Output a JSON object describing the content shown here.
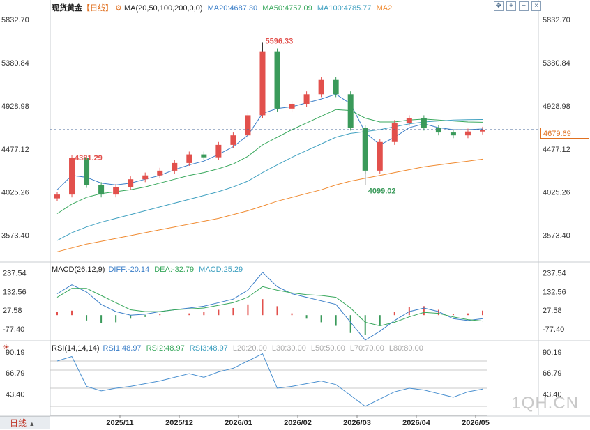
{
  "main_panel": {
    "instrument": "现货黄金",
    "period_tag": "【日线】",
    "ma_label": "MA(20,50,100,200,0,0)",
    "ma20": "MA20:4687.30",
    "ma50": "MA50:4757.09",
    "ma100": "MA100:4785.77",
    "ma2": "MA2",
    "yticks": [
      "5832.70",
      "5380.84",
      "4928.98",
      "4477.12",
      "4025.26",
      "3573.40"
    ],
    "last_price": "4679.69",
    "high_label": "5596.33",
    "low_label": "4099.02",
    "early_high_label": "4381.29"
  },
  "macd_panel": {
    "label": "MACD(26,12,9)",
    "diff": "DIFF:-20.14",
    "dea": "DEA:-32.79",
    "macd": "MACD:25.29",
    "yticks": [
      "237.54",
      "132.56",
      "27.58",
      "-77.40"
    ]
  },
  "rsi_panel": {
    "label": "RSI(14,14,14)",
    "rsi1": "RSI1:48.97",
    "rsi2": "RSI2:48.97",
    "rsi3": "RSI3:48.97",
    "l20": "L20:20.00",
    "l30": "L30:30.00",
    "l50": "L50:50.00",
    "l70": "L70:70.00",
    "l80": "L80:80.00",
    "yticks": [
      "90.19",
      "66.79",
      "43.40"
    ]
  },
  "xaxis": {
    "labels": [
      "2025/11",
      "2025/12",
      "2026/01",
      "2026/02",
      "2026/03",
      "2026/04",
      "2026/05"
    ]
  },
  "period_button": "日线",
  "watermark": "1QH.CN",
  "colors": {
    "up": "#e2504c",
    "down": "#3a9a5a",
    "ma20": "#3a7ec8",
    "ma50": "#38a85c",
    "ma100": "#3fa0c0",
    "ma200": "#f08a30",
    "rsi": "#4a90d0",
    "last_price": "#e07020"
  },
  "chart_data": [
    {
      "type": "candlestick",
      "title": "现货黄金【日线】",
      "ylim": [
        3300,
        5950
      ],
      "x": [
        "2025/10/22",
        "2025/10/29",
        "2025/11/05",
        "2025/11/12",
        "2025/11/19",
        "2025/11/26",
        "2025/12/03",
        "2025/12/10",
        "2025/12/17",
        "2025/12/24",
        "2025/12/31",
        "2026/01/07",
        "2026/01/14",
        "2026/01/21",
        "2026/01/28",
        "2026/02/04",
        "2026/02/11",
        "2026/02/18",
        "2026/02/25",
        "2026/03/04",
        "2026/03/11",
        "2026/03/18",
        "2026/03/25",
        "2026/04/01",
        "2026/04/08",
        "2026/04/15",
        "2026/04/22",
        "2026/04/29",
        "2026/05/06",
        "2026/05/13"
      ],
      "close": [
        4000,
        4381,
        4100,
        4000,
        4080,
        4160,
        4200,
        4250,
        4330,
        4420,
        4390,
        4520,
        4620,
        4830,
        5500,
        4900,
        4950,
        5050,
        5200,
        5050,
        4700,
        4250,
        4550,
        4750,
        4800,
        4700,
        4650,
        4620,
        4660,
        4680
      ],
      "high_label": 5596.33,
      "low_label": 4099.02,
      "last_price": 4679.69,
      "series": [
        {
          "name": "MA20",
          "values": [
            4050,
            4200,
            4180,
            4120,
            4100,
            4120,
            4160,
            4200,
            4260,
            4310,
            4350,
            4420,
            4500,
            4620,
            4850,
            4900,
            4920,
            4960,
            5000,
            5050,
            4950,
            4650,
            4520,
            4600,
            4700,
            4740,
            4700,
            4680,
            4680,
            4687.3
          ]
        },
        {
          "name": "MA50",
          "values": [
            3800,
            3900,
            3970,
            4010,
            4030,
            4050,
            4080,
            4120,
            4160,
            4200,
            4230,
            4270,
            4320,
            4400,
            4520,
            4600,
            4680,
            4750,
            4820,
            4890,
            4880,
            4800,
            4760,
            4760,
            4780,
            4790,
            4780,
            4770,
            4760,
            4757.09
          ]
        },
        {
          "name": "MA100",
          "values": [
            3520,
            3600,
            3660,
            3710,
            3750,
            3790,
            3830,
            3870,
            3910,
            3950,
            3990,
            4030,
            4080,
            4140,
            4230,
            4310,
            4390,
            4460,
            4530,
            4600,
            4640,
            4660,
            4680,
            4710,
            4740,
            4760,
            4770,
            4780,
            4784,
            4785.77
          ]
        },
        {
          "name": "MA2",
          "values": [
            3400,
            3440,
            3480,
            3510,
            3540,
            3570,
            3600,
            3630,
            3660,
            3690,
            3720,
            3750,
            3790,
            3830,
            3880,
            3930,
            3970,
            4010,
            4050,
            4100,
            4140,
            4170,
            4200,
            4230,
            4260,
            4290,
            4310,
            4330,
            4350,
            4370
          ]
        }
      ]
    },
    {
      "type": "bar",
      "title": "MACD(26,12,9)",
      "ylim": [
        -140,
        290
      ],
      "x": [
        "2025/10/22",
        "2025/10/29",
        "2025/11/05",
        "2025/11/12",
        "2025/11/19",
        "2025/11/26",
        "2025/12/03",
        "2025/12/10",
        "2025/12/17",
        "2025/12/24",
        "2025/12/31",
        "2026/01/07",
        "2026/01/14",
        "2026/01/21",
        "2026/01/28",
        "2026/02/04",
        "2026/02/11",
        "2026/02/18",
        "2026/02/25",
        "2026/03/04",
        "2026/03/11",
        "2026/03/18",
        "2026/03/25",
        "2026/04/01",
        "2026/04/08",
        "2026/04/15",
        "2026/04/22",
        "2026/04/29",
        "2026/05/06",
        "2026/05/13"
      ],
      "values": [
        20,
        25,
        -30,
        -45,
        -40,
        -20,
        -10,
        5,
        0,
        10,
        20,
        30,
        40,
        60,
        90,
        50,
        10,
        -20,
        -40,
        -60,
        -100,
        -110,
        -60,
        20,
        45,
        50,
        30,
        5,
        10,
        25.29
      ],
      "series": [
        {
          "name": "DIFF",
          "values": [
            120,
            170,
            130,
            60,
            20,
            0,
            5,
            20,
            30,
            40,
            50,
            70,
            90,
            140,
            240,
            160,
            120,
            100,
            80,
            60,
            -40,
            -140,
            -90,
            -30,
            20,
            40,
            20,
            -20,
            -30,
            -20.14
          ]
        },
        {
          "name": "DEA",
          "values": [
            100,
            150,
            150,
            110,
            70,
            30,
            20,
            20,
            30,
            35,
            40,
            55,
            70,
            100,
            160,
            140,
            125,
            115,
            110,
            100,
            40,
            -40,
            -60,
            -40,
            -10,
            15,
            10,
            -10,
            -25,
            -32.79
          ]
        }
      ]
    },
    {
      "type": "line",
      "title": "RSI(14,14,14)",
      "ylim": [
        20,
        100
      ],
      "x": [
        "2025/10/22",
        "2025/10/29",
        "2025/11/05",
        "2025/11/12",
        "2025/11/19",
        "2025/11/26",
        "2025/12/03",
        "2025/12/10",
        "2025/12/17",
        "2025/12/24",
        "2025/12/31",
        "2026/01/07",
        "2026/01/14",
        "2026/01/21",
        "2026/01/28",
        "2026/02/04",
        "2026/02/11",
        "2026/02/18",
        "2026/02/25",
        "2026/03/04",
        "2026/03/11",
        "2026/03/18",
        "2026/03/25",
        "2026/04/01",
        "2026/04/08",
        "2026/04/15",
        "2026/04/22",
        "2026/04/29",
        "2026/05/06",
        "2026/05/13"
      ],
      "series": [
        {
          "name": "RSI1",
          "values": [
            80,
            85,
            52,
            47,
            50,
            52,
            55,
            58,
            62,
            66,
            62,
            68,
            72,
            80,
            88,
            50,
            52,
            55,
            58,
            54,
            42,
            30,
            38,
            46,
            50,
            48,
            44,
            40,
            46,
            48.97
          ]
        }
      ],
      "levels": [
        20,
        30,
        50,
        70,
        80
      ]
    }
  ]
}
